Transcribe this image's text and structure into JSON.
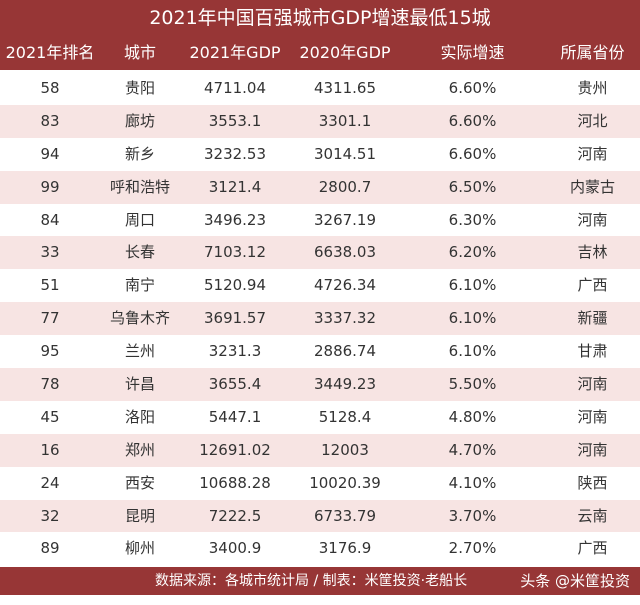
{
  "title": "2021年中国百强城市GDP增速最低15城",
  "columns": [
    "2021年排名",
    "城市",
    "2021年GDP",
    "2020年GDP",
    "实际增速",
    "所属省份"
  ],
  "rows": [
    [
      "58",
      "贵阳",
      "4711.04",
      "4311.65",
      "6.60%",
      "贵州"
    ],
    [
      "83",
      "廊坊",
      "3553.1",
      "3301.1",
      "6.60%",
      "河北"
    ],
    [
      "94",
      "新乡",
      "3232.53",
      "3014.51",
      "6.60%",
      "河南"
    ],
    [
      "99",
      "呼和浩特",
      "3121.4",
      "2800.7",
      "6.50%",
      "内蒙古"
    ],
    [
      "84",
      "周口",
      "3496.23",
      "3267.19",
      "6.30%",
      "河南"
    ],
    [
      "33",
      "长春",
      "7103.12",
      "6638.03",
      "6.20%",
      "吉林"
    ],
    [
      "51",
      "南宁",
      "5120.94",
      "4726.34",
      "6.10%",
      "广西"
    ],
    [
      "77",
      "乌鲁木齐",
      "3691.57",
      "3337.32",
      "6.10%",
      "新疆"
    ],
    [
      "95",
      "兰州",
      "3231.3",
      "2886.74",
      "6.10%",
      "甘肃"
    ],
    [
      "78",
      "许昌",
      "3655.4",
      "3449.23",
      "5.50%",
      "河南"
    ],
    [
      "45",
      "洛阳",
      "5447.1",
      "5128.4",
      "4.80%",
      "河南"
    ],
    [
      "16",
      "郑州",
      "12691.02",
      "12003",
      "4.70%",
      "河南"
    ],
    [
      "24",
      "西安",
      "10688.28",
      "10020.39",
      "4.10%",
      "陕西"
    ],
    [
      "32",
      "昆明",
      "7222.5",
      "6733.79",
      "3.70%",
      "云南"
    ],
    [
      "89",
      "柳州",
      "3400.9",
      "3176.9",
      "2.70%",
      "广西"
    ]
  ],
  "footer": {
    "source": "数据来源：各城市统计局 / 制表：米筐投资·老船长",
    "watermark": "头条 @米筐投资"
  },
  "colors": {
    "header": "#973636",
    "alt_row": "#f7e4e3"
  }
}
